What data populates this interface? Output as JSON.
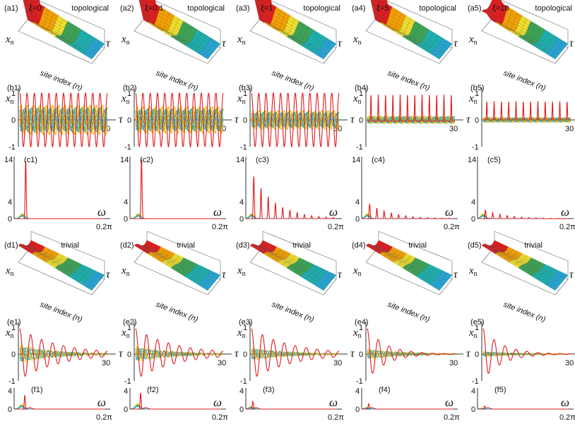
{
  "figure": {
    "row_labels": {
      "a": [
        "(a1)",
        "(a2)",
        "(a3)",
        "(a4)",
        "(a5)"
      ],
      "b": [
        "(b1)",
        "(b2)",
        "(b3)",
        "(b4)",
        "(b5)"
      ],
      "c": [
        "(c1)",
        "(c2)",
        "(c3)",
        "(c4)",
        "(c5)"
      ],
      "d": [
        "(d1)",
        "(d2)",
        "(d3)",
        "(d4)",
        "(d5)"
      ],
      "e": [
        "(e1)",
        "(e2)",
        "(e3)",
        "(e4)",
        "(e5)"
      ],
      "f": [
        "(f1)",
        "(f2)",
        "(f3)",
        "(f4)",
        "(f5)"
      ]
    },
    "xi_labels": [
      "ξ=0",
      "ξ=0.1",
      "ξ=1",
      "ξ=5",
      "ξ=10"
    ],
    "phase_topological": "topological",
    "phase_trivial": "trivial",
    "surface_axis_label": "site index (n)",
    "xn_label": "x",
    "xn_sub": "n",
    "tau_label": "τ",
    "omega_label": "ω",
    "time_tick_end": "30",
    "freq_tick_end": "0.2π",
    "time_yticks": [
      "1",
      "0",
      "-1"
    ],
    "spec_yticks_topological": [
      "14",
      "4",
      "0"
    ],
    "spec_yticks_trivial": [
      "4",
      "0"
    ]
  },
  "colors": {
    "red": "#e31a1c",
    "orange": "#f6a200",
    "yellow": "#f2e12a",
    "green": "#3aa655",
    "teal": "#19b3b3",
    "cyan": "#22a8d8"
  },
  "chart_data": [
    {
      "panel": "time-series",
      "rows": [
        "b",
        "e"
      ],
      "type": "line",
      "xlabel": "τ",
      "ylabel": "x_n",
      "xlim": [
        0,
        30
      ],
      "ylim": [
        -1,
        1
      ],
      "series": [
        {
          "name": "edge site n=1 (red)",
          "xi": [
            0,
            0.1,
            1,
            5,
            10
          ],
          "topological_peak_amplitude": [
            1.0,
            1.0,
            1.0,
            1.0,
            0.7
          ],
          "topological_baseline": [
            0,
            0,
            -0.1,
            -0.05,
            0
          ]
        },
        {
          "name": "bulk sites (orange/yellow/green/cyan)",
          "topological_amplitude": [
            0.55,
            0.5,
            0.35,
            0.15,
            0.1
          ],
          "trivial_amplitude": [
            0.35,
            0.3,
            0.25,
            0.2,
            0.1
          ]
        }
      ]
    },
    {
      "panel": "spectra-topological",
      "row": "c",
      "type": "line",
      "xlabel": "ω",
      "xlim": [
        0,
        "0.2π"
      ],
      "ylim": [
        0,
        14
      ],
      "xi": [
        0,
        0.1,
        1,
        5,
        10
      ],
      "main_peak_height": [
        13.5,
        14,
        10,
        3.5,
        2.0
      ],
      "harmonic_comb": [
        false,
        false,
        true,
        true,
        true
      ]
    },
    {
      "panel": "spectra-trivial",
      "row": "f",
      "type": "line",
      "xlabel": "ω",
      "xlim": [
        0,
        "0.2π"
      ],
      "ylim": [
        0,
        4
      ],
      "xi": [
        0,
        0.1,
        1,
        5,
        10
      ],
      "main_peak_height": [
        3.0,
        3.5,
        1.6,
        1.1,
        0.6
      ]
    }
  ]
}
